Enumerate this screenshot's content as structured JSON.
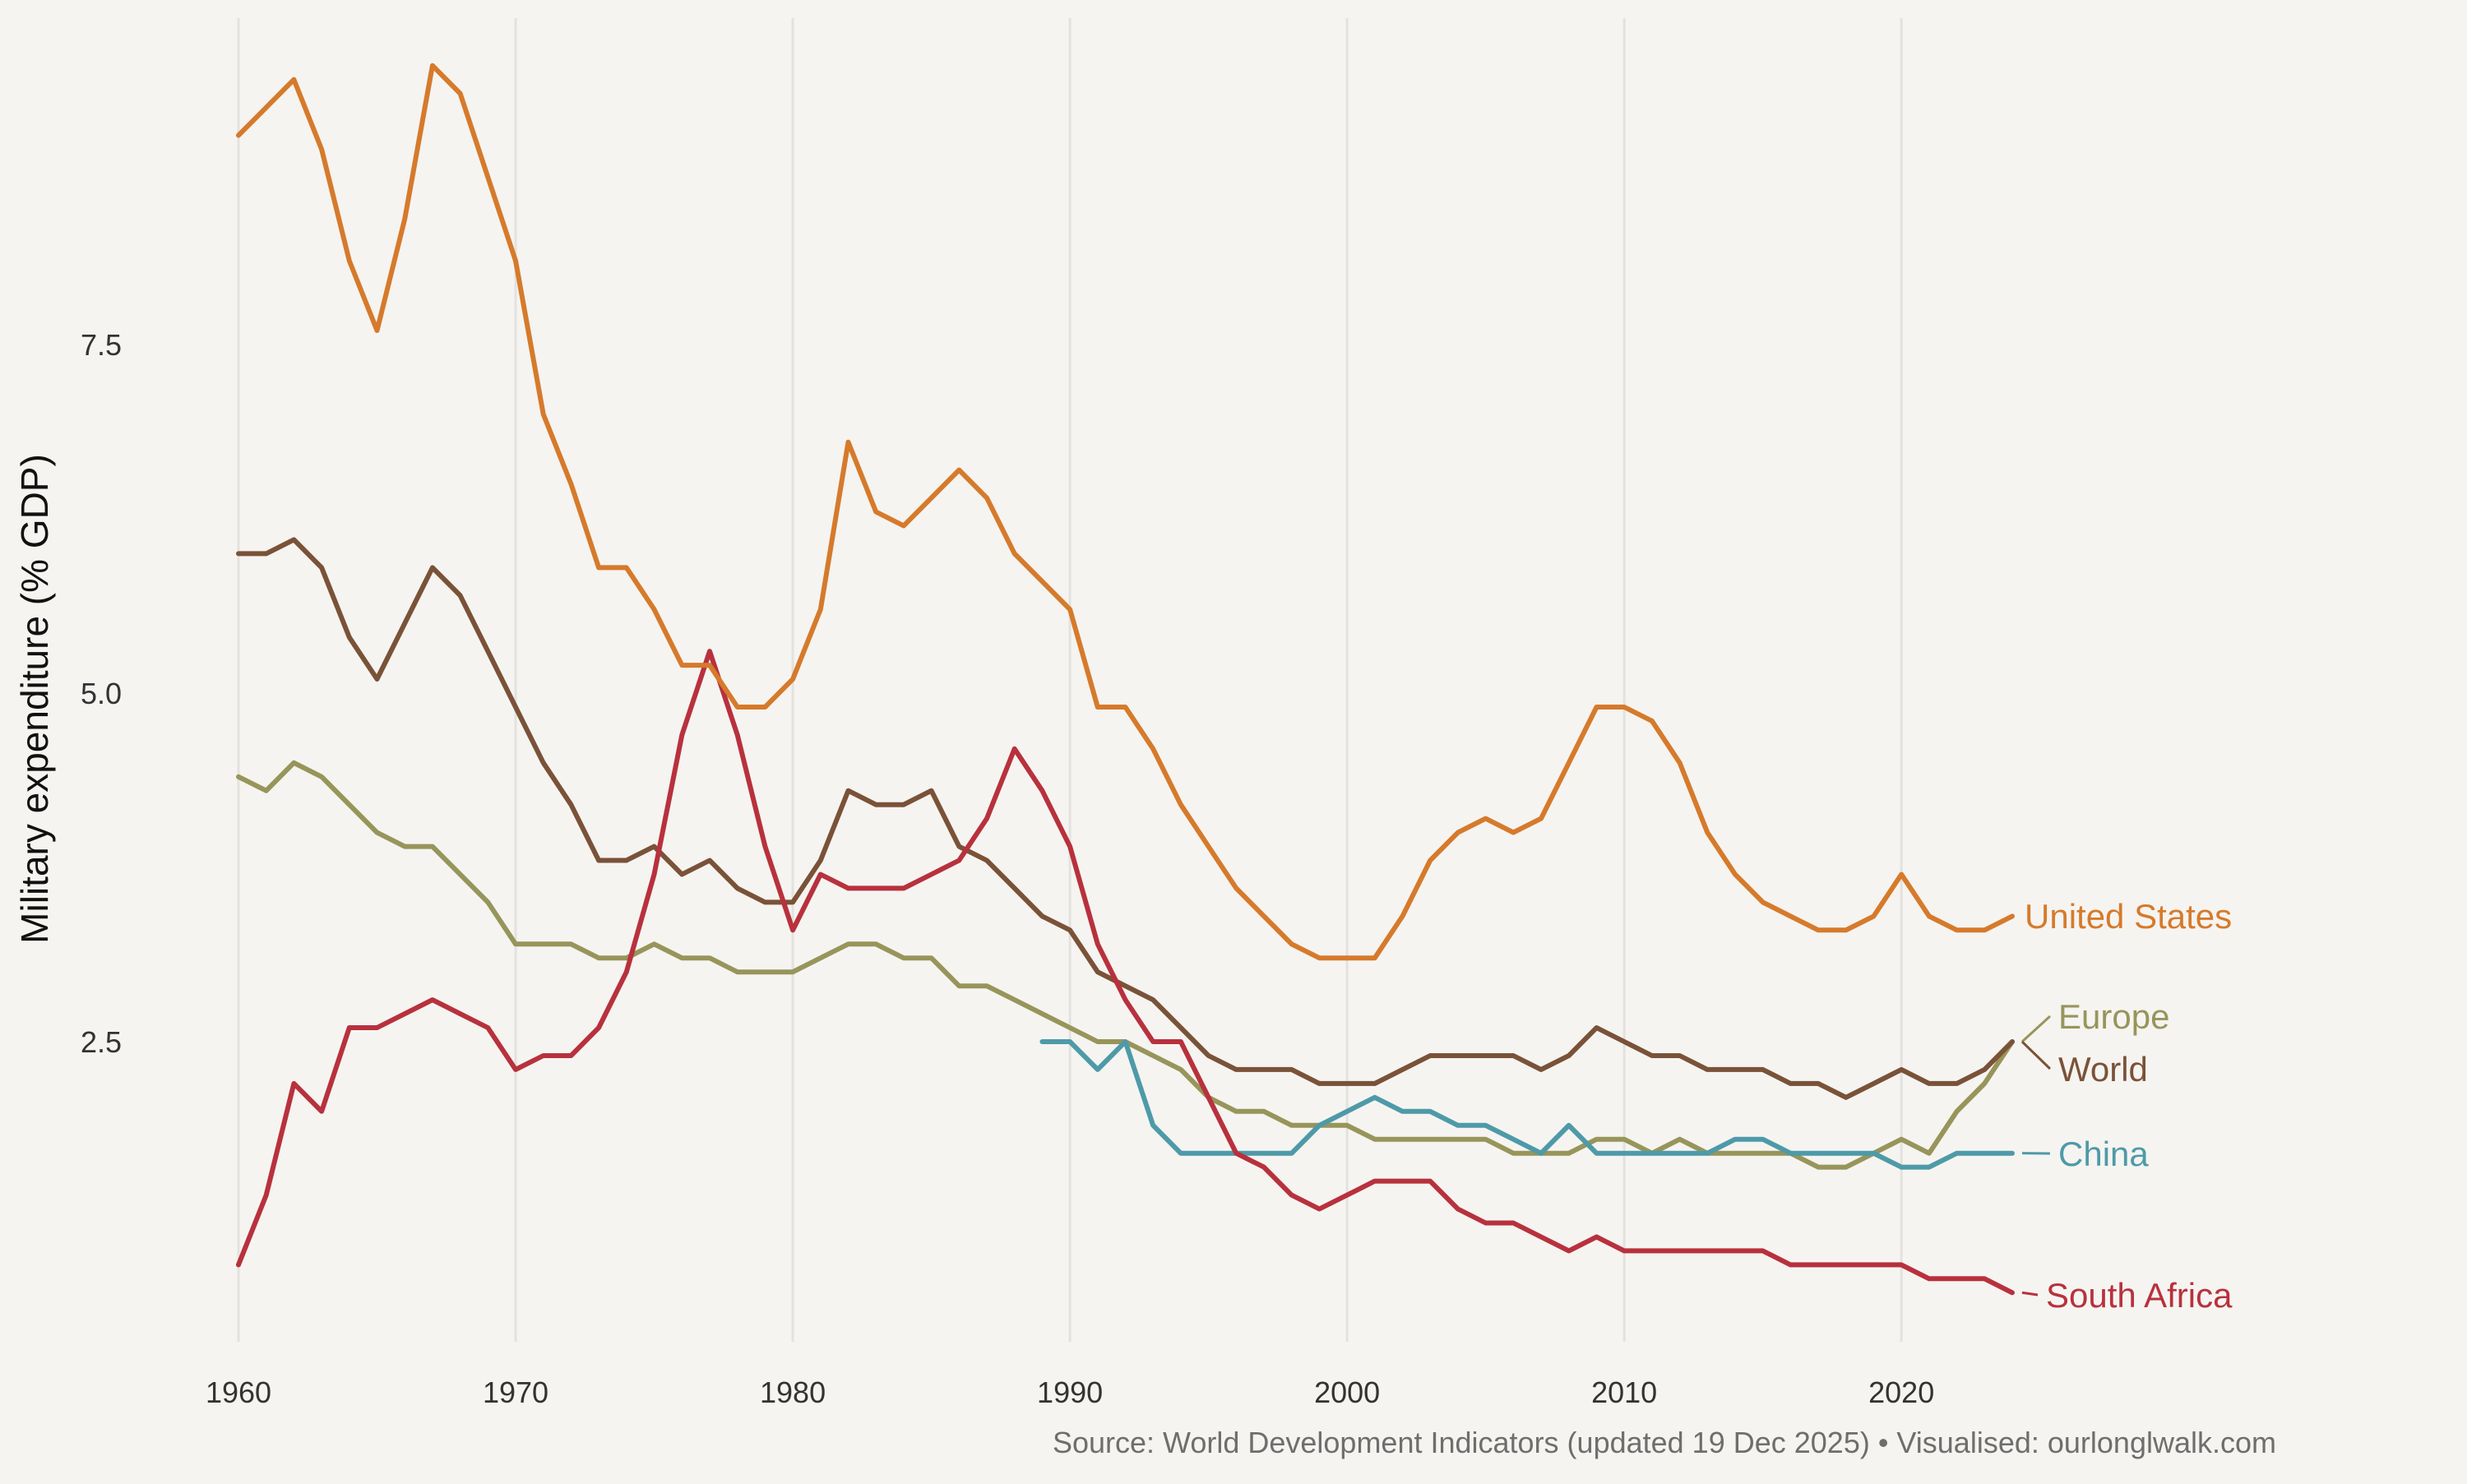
{
  "chart_data": {
    "type": "line",
    "title": "",
    "xlabel": "",
    "ylabel": "Military expenditure (% GDP)",
    "caption": "Source: World Development Indicators (updated 19 Dec 2025) • Visualised: ourlonglwalk.com",
    "xlim": [
      1960,
      2024
    ],
    "ylim": [
      0.6,
      9.8
    ],
    "x_ticks": [
      1960,
      1970,
      1980,
      1990,
      2000,
      2010,
      2020
    ],
    "x_tick_labels": [
      "1960",
      "1970",
      "1980",
      "1990",
      "2000",
      "2010",
      "2020"
    ],
    "y_ticks": [
      2.5,
      5.0,
      7.5
    ],
    "y_tick_labels": [
      "2.5",
      "5.0",
      "7.5"
    ],
    "grid": "vertical",
    "legend": "direct labels at line ends (right)",
    "series": [
      {
        "name": "United States",
        "color": "#d67a2b",
        "x_start": 1960,
        "values": [
          9.0,
          9.2,
          9.4,
          8.9,
          8.1,
          7.6,
          8.4,
          9.5,
          9.3,
          8.7,
          8.1,
          7.0,
          6.5,
          5.9,
          5.9,
          5.6,
          5.2,
          5.2,
          4.9,
          4.9,
          5.1,
          5.6,
          6.8,
          6.3,
          6.2,
          6.4,
          6.6,
          6.4,
          6.0,
          5.8,
          5.6,
          4.9,
          4.9,
          4.6,
          4.2,
          3.9,
          3.6,
          3.4,
          3.2,
          3.1,
          3.1,
          3.1,
          3.4,
          3.8,
          4.0,
          4.1,
          4.0,
          4.1,
          4.5,
          4.9,
          4.9,
          4.8,
          4.5,
          4.0,
          3.7,
          3.5,
          3.4,
          3.3,
          3.3,
          3.4,
          3.7,
          3.4,
          3.3,
          3.3,
          3.4
        ]
      },
      {
        "name": "Europe",
        "color": "#97955a",
        "x_start": 1960,
        "values": [
          4.4,
          4.3,
          4.5,
          4.4,
          4.2,
          4.0,
          3.9,
          3.9,
          3.7,
          3.5,
          3.2,
          3.2,
          3.2,
          3.1,
          3.1,
          3.2,
          3.1,
          3.1,
          3.0,
          3.0,
          3.0,
          3.1,
          3.2,
          3.2,
          3.1,
          3.1,
          2.9,
          2.9,
          2.8,
          2.7,
          2.6,
          2.5,
          2.5,
          2.4,
          2.3,
          2.1,
          2.0,
          2.0,
          1.9,
          1.9,
          1.9,
          1.8,
          1.8,
          1.8,
          1.8,
          1.8,
          1.7,
          1.7,
          1.7,
          1.8,
          1.8,
          1.7,
          1.8,
          1.7,
          1.7,
          1.7,
          1.7,
          1.6,
          1.6,
          1.7,
          1.8,
          1.7,
          2.0,
          2.2,
          2.5
        ]
      },
      {
        "name": "World",
        "color": "#7a5238",
        "x_start": 1960,
        "values": [
          6.0,
          6.0,
          6.1,
          5.9,
          5.4,
          5.1,
          5.5,
          5.9,
          5.7,
          5.3,
          4.9,
          4.5,
          4.2,
          3.8,
          3.8,
          3.9,
          3.7,
          3.8,
          3.6,
          3.5,
          3.5,
          3.8,
          4.3,
          4.2,
          4.2,
          4.3,
          3.9,
          3.8,
          3.6,
          3.4,
          3.3,
          3.0,
          2.9,
          2.8,
          2.6,
          2.4,
          2.3,
          2.3,
          2.3,
          2.2,
          2.2,
          2.2,
          2.3,
          2.4,
          2.4,
          2.4,
          2.4,
          2.3,
          2.4,
          2.6,
          2.5,
          2.4,
          2.4,
          2.3,
          2.3,
          2.3,
          2.2,
          2.2,
          2.1,
          2.2,
          2.3,
          2.2,
          2.2,
          2.3,
          2.5
        ]
      },
      {
        "name": "China",
        "color": "#4e9aa8",
        "x_start": 1989,
        "values": [
          2.5,
          2.5,
          2.3,
          2.5,
          1.9,
          1.7,
          1.7,
          1.7,
          1.7,
          1.7,
          1.9,
          2.0,
          2.1,
          2.0,
          2.0,
          1.9,
          1.9,
          1.8,
          1.7,
          1.9,
          1.7,
          1.7,
          1.7,
          1.7,
          1.7,
          1.8,
          1.8,
          1.7,
          1.7,
          1.7,
          1.7,
          1.6,
          1.6,
          1.7,
          1.7,
          1.7
        ]
      },
      {
        "name": "South Africa",
        "color": "#b8313d",
        "x_start": 1960,
        "values": [
          0.9,
          1.4,
          2.2,
          2.0,
          2.6,
          2.6,
          2.7,
          2.8,
          2.7,
          2.6,
          2.3,
          2.4,
          2.4,
          2.6,
          3.0,
          3.7,
          4.7,
          5.3,
          4.7,
          3.9,
          3.3,
          3.7,
          3.6,
          3.6,
          3.6,
          3.7,
          3.8,
          4.1,
          4.6,
          4.3,
          3.9,
          3.2,
          2.8,
          2.5,
          2.5,
          2.1,
          1.7,
          1.6,
          1.4,
          1.3,
          1.4,
          1.5,
          1.5,
          1.5,
          1.3,
          1.2,
          1.2,
          1.1,
          1.0,
          1.1,
          1.0,
          1.0,
          1.0,
          1.0,
          1.0,
          1.0,
          0.9,
          0.9,
          0.9,
          0.9,
          0.9,
          0.8,
          0.8,
          0.8,
          0.7
        ]
      }
    ]
  }
}
